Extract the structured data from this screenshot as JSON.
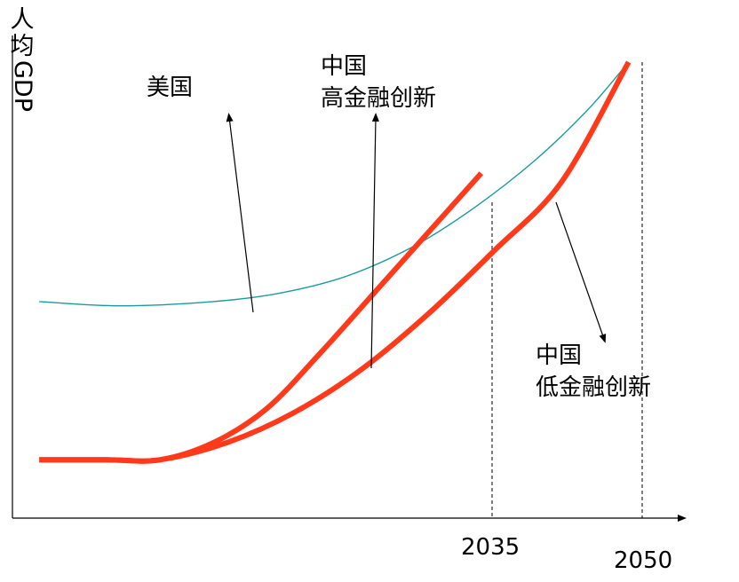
{
  "chart_data": {
    "type": "line",
    "title": "",
    "ylabel": {
      "chars": "人均",
      "latin": "GDP"
    },
    "xlabel": "",
    "x_ticks": [
      "2035",
      "2050"
    ],
    "ylim": [
      0,
      100
    ],
    "series": [
      {
        "name": "美国",
        "color": "#1a9c9c",
        "points": [
          [
            0.04,
            44
          ],
          [
            0.16,
            43
          ],
          [
            0.3,
            44
          ],
          [
            0.4,
            46
          ],
          [
            0.5,
            50
          ],
          [
            0.6,
            57
          ],
          [
            0.69,
            66
          ],
          [
            0.78,
            77
          ],
          [
            0.86,
            89
          ],
          [
            0.92,
            100
          ]
        ]
      },
      {
        "name": "中国 高金融创新",
        "color": "#ff3a1a",
        "points": [
          [
            0.04,
            7
          ],
          [
            0.14,
            7
          ],
          [
            0.22,
            7
          ],
          [
            0.3,
            11
          ],
          [
            0.38,
            19
          ],
          [
            0.46,
            32
          ],
          [
            0.54,
            46
          ],
          [
            0.62,
            60
          ],
          [
            0.7,
            74
          ]
        ]
      },
      {
        "name": "中国 低金融创新",
        "color": "#ff3a1a",
        "points": [
          [
            0.04,
            7
          ],
          [
            0.14,
            7
          ],
          [
            0.22,
            7
          ],
          [
            0.32,
            11
          ],
          [
            0.42,
            18
          ],
          [
            0.52,
            28
          ],
          [
            0.62,
            41
          ],
          [
            0.72,
            56
          ],
          [
            0.82,
            72
          ],
          [
            0.92,
            100
          ]
        ]
      }
    ],
    "annotations": [
      {
        "text": "美国",
        "target_series": 0
      },
      {
        "lines": [
          "中国",
          "高金融创新"
        ],
        "target_series": 1
      },
      {
        "lines": [
          "中国",
          "低金融创新"
        ],
        "target_series": 2
      }
    ]
  }
}
